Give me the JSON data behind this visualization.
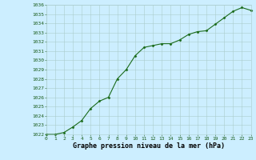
{
  "x": [
    0,
    1,
    2,
    3,
    4,
    5,
    6,
    7,
    8,
    9,
    10,
    11,
    12,
    13,
    14,
    15,
    16,
    17,
    18,
    19,
    20,
    21,
    22,
    23
  ],
  "y": [
    1022.0,
    1022.0,
    1022.2,
    1022.8,
    1023.5,
    1024.8,
    1025.6,
    1026.0,
    1028.0,
    1029.0,
    1030.5,
    1031.4,
    1031.6,
    1031.8,
    1031.8,
    1032.2,
    1032.8,
    1033.1,
    1033.2,
    1033.9,
    1034.6,
    1035.3,
    1035.7,
    1035.4
  ],
  "ylim": [
    1022,
    1036
  ],
  "xlim": [
    0,
    23
  ],
  "yticks": [
    1022,
    1023,
    1024,
    1025,
    1026,
    1027,
    1028,
    1029,
    1030,
    1031,
    1032,
    1033,
    1034,
    1035,
    1036
  ],
  "xticks": [
    0,
    1,
    2,
    3,
    4,
    5,
    6,
    7,
    8,
    9,
    10,
    11,
    12,
    13,
    14,
    15,
    16,
    17,
    18,
    19,
    20,
    21,
    22,
    23
  ],
  "line_color": "#1a6b1a",
  "marker_color": "#1a6b1a",
  "bg_color": "#cceeff",
  "grid_color": "#aacccc",
  "xlabel": "Graphe pression niveau de la mer (hPa)",
  "xlabel_color": "#000000",
  "tick_label_color": "#1a5c1a",
  "tick_fontsize": 4.5,
  "xlabel_fontsize": 6.0,
  "marker": "D",
  "marker_size": 1.5,
  "line_width": 0.8
}
